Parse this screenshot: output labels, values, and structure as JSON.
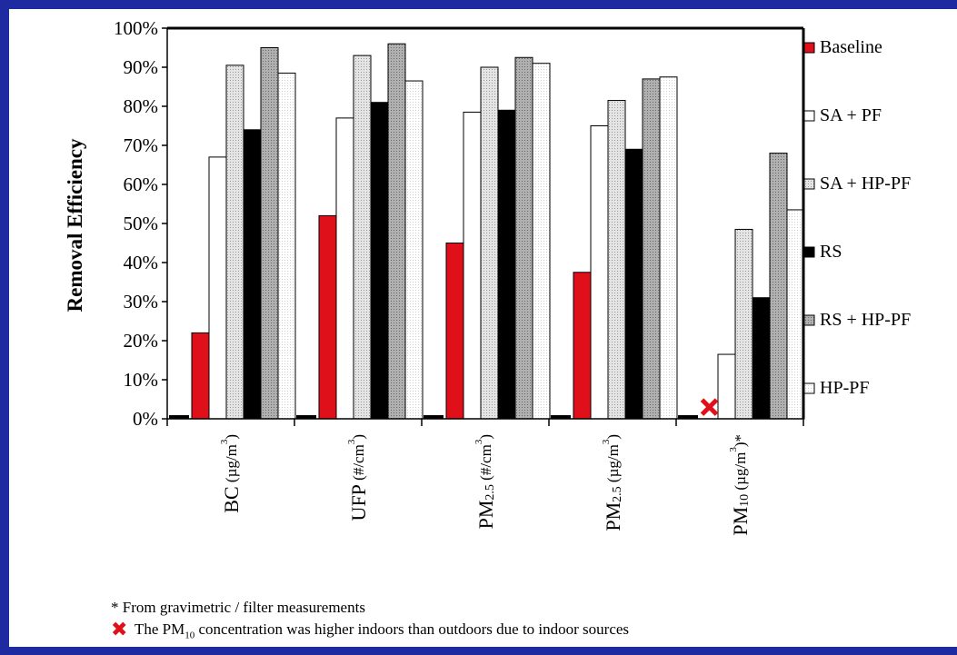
{
  "chart_data": {
    "type": "bar",
    "ylabel": "Removal Efficiency",
    "yticks": [
      "0%",
      "10%",
      "20%",
      "30%",
      "40%",
      "50%",
      "60%",
      "70%",
      "80%",
      "90%",
      "100%"
    ],
    "ylim": [
      0,
      100
    ],
    "categories": [
      {
        "label": "BC (µg/m³)",
        "main": "BC",
        "sub": "",
        "unit": "(µg/m",
        "sup": "3",
        "tail": ")"
      },
      {
        "label": "UFP (#/cm³)",
        "main": "UFP",
        "sub": "",
        "unit": "(#/cm",
        "sup": "3",
        "tail": ")"
      },
      {
        "label": "PM2.5 (#/cm³)",
        "main": "PM",
        "sub": "2.5",
        "unit": "(#/cm",
        "sup": "3",
        "tail": ")"
      },
      {
        "label": "PM2.5 (µg/m³)",
        "main": "PM",
        "sub": "2.5",
        "unit": "(µg/m",
        "sup": "3",
        "tail": ")"
      },
      {
        "label": "PM10 (µg/m³)*",
        "main": "PM",
        "sub": "10",
        "unit": "(µg/m",
        "sup": "3",
        "tail": ")*"
      }
    ],
    "series": [
      {
        "name": "Baseline",
        "color": "#e0101a",
        "pattern": "solid",
        "values": [
          22,
          52,
          45,
          37.5,
          null
        ]
      },
      {
        "name": "SA + PF",
        "color": "#ffffff",
        "pattern": "solid",
        "values": [
          67,
          77,
          78.5,
          75,
          16.5
        ]
      },
      {
        "name": "SA + HP-PF",
        "color": "#d8d8d8",
        "pattern": "dots",
        "values": [
          90.5,
          93,
          90,
          81.5,
          48.5
        ]
      },
      {
        "name": "RS",
        "color": "#000000",
        "pattern": "solid",
        "values": [
          74,
          81,
          79,
          69,
          31
        ]
      },
      {
        "name": "RS + HP-PF",
        "color": "#a8a8a8",
        "pattern": "dots",
        "values": [
          95,
          96,
          92.5,
          87,
          68
        ]
      },
      {
        "name": "HP-PF",
        "color": "#f4f4f4",
        "pattern": "dots",
        "values": [
          88.5,
          86.5,
          91,
          87.5,
          53.5
        ]
      }
    ],
    "annotations": [
      {
        "category": 4,
        "series": 0,
        "marker": "red-x-icon",
        "value": 3
      }
    ],
    "legend_placement": "right",
    "grid": false
  },
  "footnotes": {
    "star_note": "* From gravimetric / filter measurements",
    "x_note_prefix": "The PM",
    "x_note_sub": "10",
    "x_note_suffix": " concentration was higher indoors than outdoors due to indoor sources"
  },
  "colors": {
    "frame": "#1e2aa0",
    "accent_red": "#e0101a"
  }
}
